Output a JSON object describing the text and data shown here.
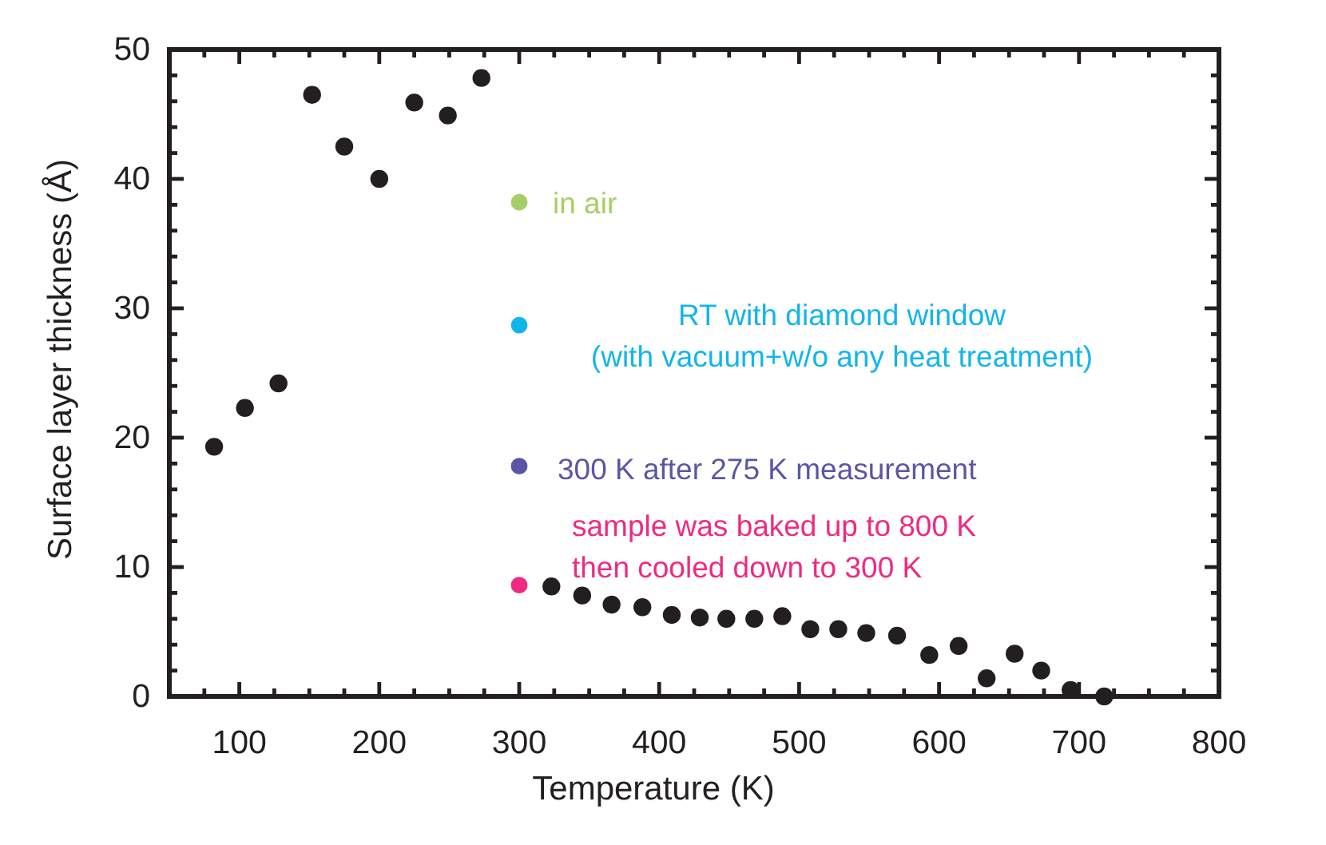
{
  "chart_data": {
    "type": "scatter",
    "xlabel": "Temperature (K)",
    "ylabel": "Surface layer thickness (Å)",
    "marker": "circle",
    "xlim": [
      50,
      800
    ],
    "xticks": [
      {
        "value": 75,
        "label": null
      },
      100,
      {
        "value": 125,
        "label": null
      },
      {
        "value": 150,
        "label": null
      },
      {
        "value": 175,
        "label": null
      },
      200,
      {
        "value": 225,
        "label": null
      },
      {
        "value": 250,
        "label": null
      },
      {
        "value": 275,
        "label": null
      },
      300,
      {
        "value": 325,
        "label": null
      },
      {
        "value": 350,
        "label": null
      },
      {
        "value": 375,
        "label": null
      },
      400,
      {
        "value": 425,
        "label": null
      },
      {
        "value": 450,
        "label": null
      },
      {
        "value": 475,
        "label": null
      },
      500,
      {
        "value": 525,
        "label": null
      },
      {
        "value": 550,
        "label": null
      },
      {
        "value": 575,
        "label": null
      },
      600,
      {
        "value": 625,
        "label": null
      },
      {
        "value": 650,
        "label": null
      },
      {
        "value": 675,
        "label": null
      },
      700,
      {
        "value": 725,
        "label": null
      },
      {
        "value": 750,
        "label": null
      },
      {
        "value": 775,
        "label": null
      },
      800
    ],
    "ylim": [
      0,
      50
    ],
    "yticks": [
      0,
      {
        "value": 2,
        "label": null
      },
      {
        "value": 4,
        "label": null
      },
      {
        "value": 6,
        "label": null
      },
      {
        "value": 8,
        "label": null
      },
      10,
      {
        "value": 12,
        "label": null
      },
      {
        "value": 14,
        "label": null
      },
      {
        "value": 16,
        "label": null
      },
      {
        "value": 18,
        "label": null
      },
      20,
      {
        "value": 22,
        "label": null
      },
      {
        "value": 24,
        "label": null
      },
      {
        "value": 26,
        "label": null
      },
      {
        "value": 28,
        "label": null
      },
      30,
      {
        "value": 32,
        "label": null
      },
      {
        "value": 34,
        "label": null
      },
      {
        "value": 36,
        "label": null
      },
      {
        "value": 38,
        "label": null
      },
      40,
      {
        "value": 42,
        "label": null
      },
      {
        "value": 44,
        "label": null
      },
      {
        "value": 46,
        "label": null
      },
      {
        "value": 48,
        "label": null
      },
      50
    ],
    "series": [
      {
        "color": "#231f20",
        "x": [
          82,
          104,
          128,
          152,
          175,
          200,
          225,
          249,
          273,
          323,
          345,
          366,
          388,
          409,
          429,
          448,
          468,
          488,
          508,
          528,
          548,
          570,
          593,
          614,
          634,
          654,
          673,
          694,
          718
        ],
        "values": [
          19.3,
          22.3,
          24.2,
          46.5,
          42.5,
          40.0,
          45.9,
          44.9,
          47.8,
          8.5,
          7.8,
          7.1,
          6.9,
          6.3,
          6.1,
          6.0,
          6.0,
          6.2,
          5.2,
          5.2,
          4.9,
          4.7,
          3.2,
          3.9,
          1.4,
          3.3,
          2.0,
          0.5,
          0.0
        ]
      },
      {
        "name": "in air",
        "color": "#a5cf66",
        "x": [
          300
        ],
        "values": [
          38.2
        ]
      },
      {
        "name": "RT with diamond window\n(with vacuum+w/o any heat treatment)",
        "color": "#12b5ea",
        "x": [
          300
        ],
        "values": [
          28.7
        ]
      },
      {
        "name": "300 K after 275 K measurement",
        "color": "#5a56a5",
        "x": [
          300
        ],
        "values": [
          17.8
        ]
      },
      {
        "name": "sample was baked up to 800 K\nthen cooled down to 300 K",
        "color": "#ee2a82",
        "x": [
          300
        ],
        "values": [
          8.6
        ]
      }
    ]
  }
}
